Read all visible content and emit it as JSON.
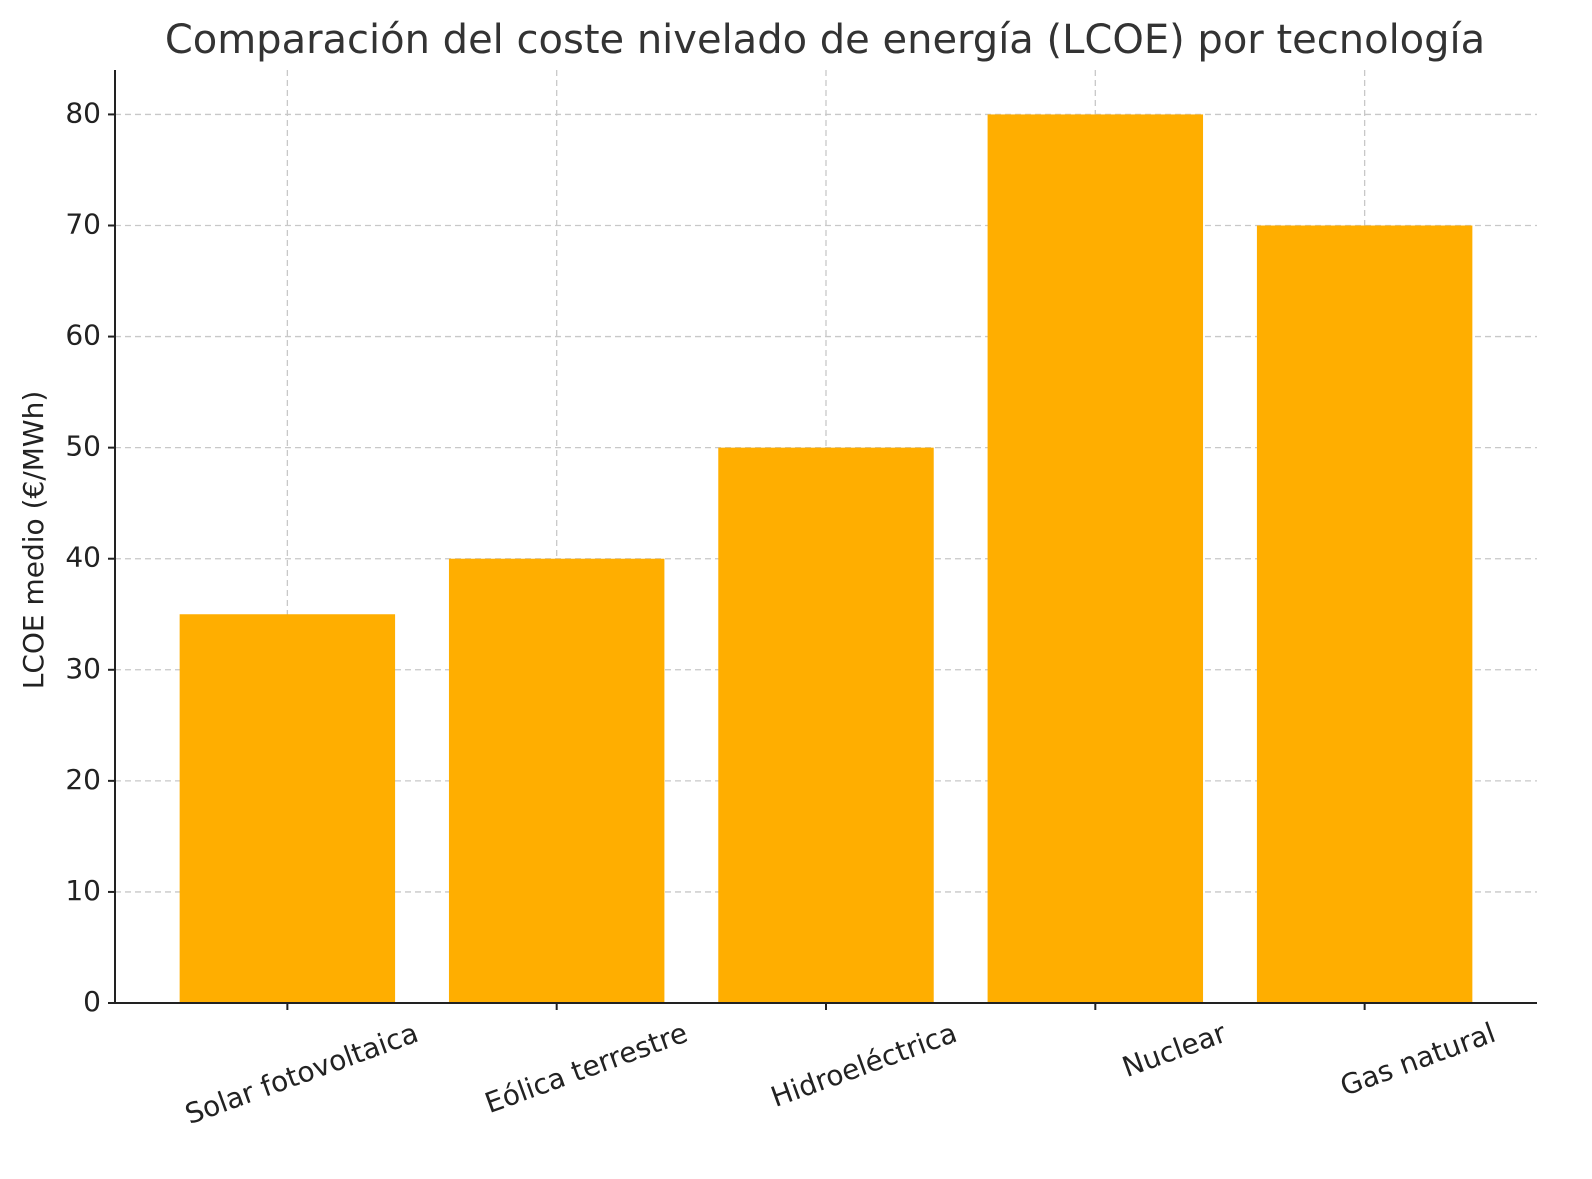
{
  "chart_data": {
    "type": "bar",
    "title": "Comparación del coste nivelado de energía (LCOE) por tecnología",
    "ylabel": "LCOE medio (€/MWh)",
    "categories": [
      "Solar fotovoltaica",
      "Eólica terrestre",
      "Hidroeléctrica",
      "Nuclear",
      "Gas natural"
    ],
    "values": [
      35,
      40,
      50,
      80,
      70
    ],
    "color": "#ffae00",
    "ylim": [
      0,
      84
    ],
    "yticks": [
      0,
      10,
      20,
      30,
      40,
      50,
      60,
      70,
      80
    ],
    "grid": true
  }
}
